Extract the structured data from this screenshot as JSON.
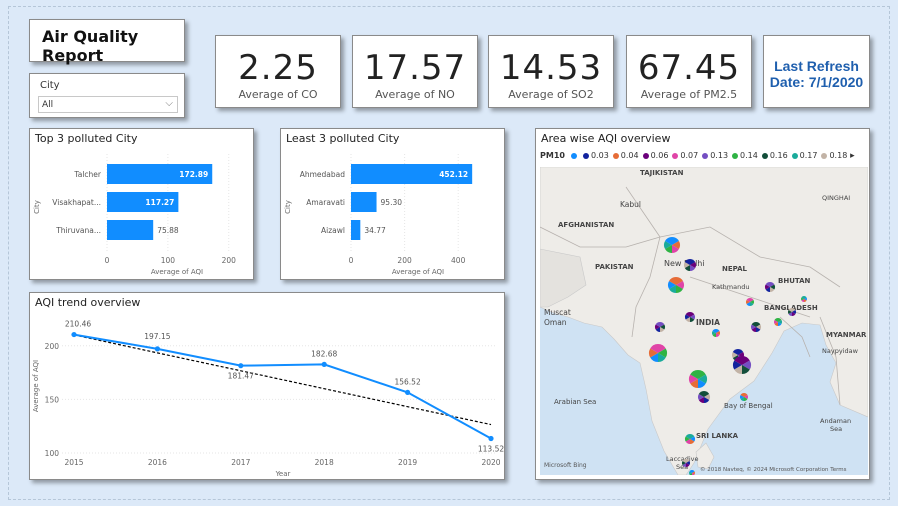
{
  "report": {
    "title": "Air Quality Report"
  },
  "slicer": {
    "label": "City",
    "value": "All"
  },
  "kpis": [
    {
      "value": "2.25",
      "label": "Average of CO"
    },
    {
      "value": "17.57",
      "label": "Average of NO"
    },
    {
      "value": "14.53",
      "label": "Average of SO2"
    },
    {
      "value": "67.45",
      "label": "Average of PM2.5"
    }
  ],
  "refresh": {
    "line1": "Last Refresh",
    "line2": "Date: 7/1/2020"
  },
  "colors": {
    "bar": "#118dff",
    "line": "#118dff",
    "trend": "#000000",
    "refresh_text": "#1f5fae"
  },
  "top3": {
    "title": "Top 3 polluted City",
    "ylabel": "City",
    "xlabel": "Average of AQI",
    "chart_data": {
      "type": "bar",
      "categories": [
        "Talcher",
        "Visakhapat...",
        "Thiruvana..."
      ],
      "values": [
        172.89,
        117.27,
        75.88
      ],
      "value_labels": [
        "172.89",
        "117.27",
        "75.88"
      ],
      "xticks": [
        "0",
        "100",
        "200"
      ],
      "xlim": [
        0,
        230
      ]
    }
  },
  "least3": {
    "title": "Least 3 polluted City",
    "ylabel": "City",
    "xlabel": "Average of AQI",
    "chart_data": {
      "type": "bar",
      "categories": [
        "Ahmedabad",
        "Amaravati",
        "Aizawl"
      ],
      "values": [
        452.12,
        95.3,
        34.77
      ],
      "value_labels": [
        "452.12",
        "95.30",
        "34.77"
      ],
      "xticks": [
        "0",
        "200",
        "400"
      ],
      "xlim": [
        0,
        500
      ]
    }
  },
  "trend": {
    "title": "AQI trend overview",
    "ylabel": "Average of AQI",
    "xlabel": "Year",
    "chart_data": {
      "type": "line",
      "x": [
        "2015",
        "2016",
        "2017",
        "2018",
        "2019",
        "2020"
      ],
      "values": [
        210.46,
        197.15,
        181.47,
        182.68,
        156.52,
        113.52
      ],
      "value_labels": [
        "210.46",
        "197.15",
        "181.47",
        "182.68",
        "156.52",
        "113.52"
      ],
      "yticks": [
        "100",
        "150",
        "200"
      ],
      "ylim": [
        100,
        225
      ],
      "trendline": [
        210.2,
        193.4,
        176.7,
        160.0,
        143.2,
        126.5
      ]
    }
  },
  "map": {
    "title": "Area wise AQI overview",
    "legend_title": "PM10",
    "legend": [
      {
        "label": "",
        "color": "#118dff"
      },
      {
        "label": "0.03",
        "color": "#12239e"
      },
      {
        "label": "0.04",
        "color": "#e66c37"
      },
      {
        "label": "0.06",
        "color": "#6b007b"
      },
      {
        "label": "0.07",
        "color": "#e044a7"
      },
      {
        "label": "0.13",
        "color": "#744ec2"
      },
      {
        "label": "0.14",
        "color": "#2fb344"
      },
      {
        "label": "0.16",
        "color": "#124e3a"
      },
      {
        "label": "0.17",
        "color": "#1aab9b"
      },
      {
        "label": "0.18",
        "color": "#c2b3a6"
      }
    ],
    "more_icon": "chevron-right-icon",
    "labels": [
      "TAJIKISTAN",
      "Kabul",
      "AFGHANISTAN",
      "PAKISTAN",
      "New Delhi",
      "NEPAL",
      "Kathmandu",
      "BHUTAN",
      "BANGLADESH",
      "MYANMAR",
      "INDIA",
      "Muscat",
      "Oman",
      "Arabian Sea",
      "Bay of Bengal",
      "SRI LANKA",
      "Laccadive Sea",
      "Andaman Sea",
      "QINGHAI",
      "Naypyidaw"
    ],
    "attribution": "© 2018 Navteq, © 2024 Microsoft Corporation  Terms",
    "brand": "Microsoft Bing"
  }
}
